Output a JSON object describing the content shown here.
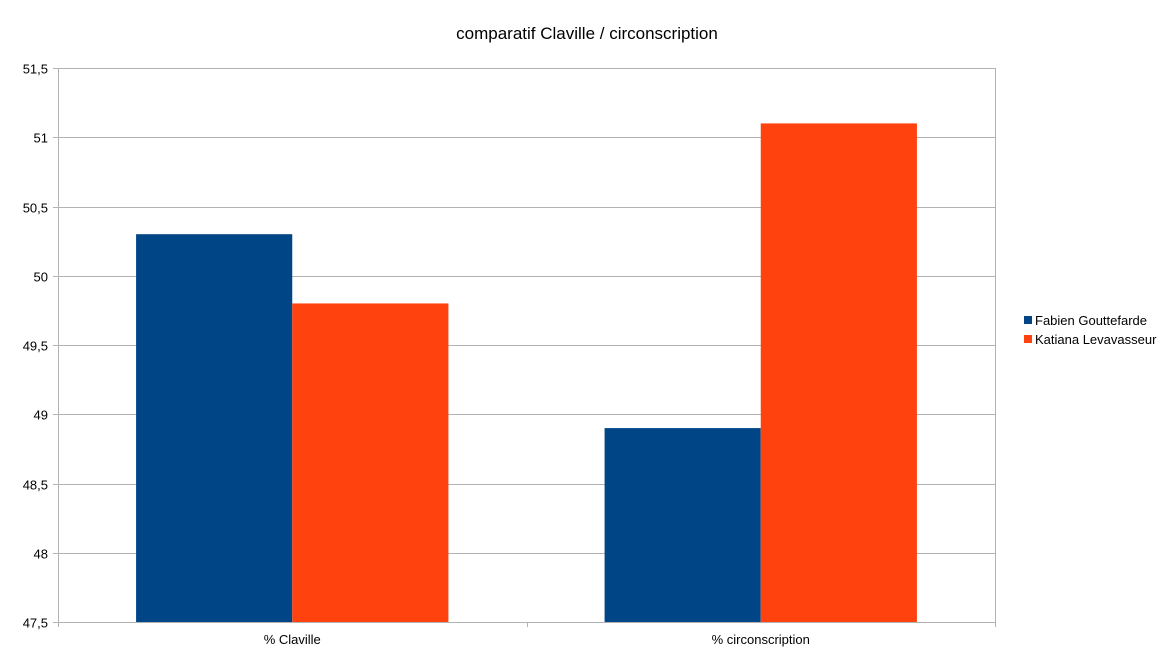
{
  "chart_data": {
    "type": "bar",
    "title": "comparatif Claville / circonscription",
    "xlabel": "",
    "ylabel": "",
    "categories": [
      "% Claville",
      "% circonscription"
    ],
    "series": [
      {
        "name": "Fabien Gouttefarde",
        "values": [
          50.3,
          48.9
        ],
        "color": "#004586"
      },
      {
        "name": "Katiana Levavasseur",
        "values": [
          49.8,
          51.1
        ],
        "color": "#ff420e"
      }
    ],
    "ylim": [
      47.5,
      51.5
    ],
    "yticks": [
      47.5,
      48,
      48.5,
      49,
      49.5,
      50,
      50.5,
      51,
      51.5
    ],
    "ytick_labels": [
      "47,5",
      "48",
      "48,5",
      "49",
      "49,5",
      "50",
      "50,5",
      "51",
      "51,5"
    ],
    "grid": true,
    "legend_position": "right"
  }
}
